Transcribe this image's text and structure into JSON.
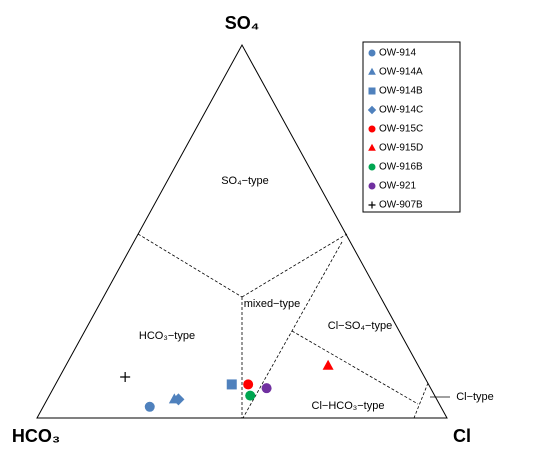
{
  "chart_data": {
    "type": "ternary",
    "axes": [
      "SO₄",
      "Cl",
      "HCO₃"
    ],
    "regions": [
      "SO₄−type",
      "mixed−type",
      "HCO₃−type",
      "Cl−SO₄−type",
      "Cl−HCO₃−type",
      "Cl−type"
    ],
    "legend": "upper right",
    "series": [
      {
        "name": "OW-914",
        "color": "#4f81bd",
        "marker": "circle",
        "values": [
          3,
          26,
          71
        ]
      },
      {
        "name": "OW-914A",
        "color": "#4f81bd",
        "marker": "triangle",
        "values": [
          5,
          31,
          64
        ]
      },
      {
        "name": "OW-914B",
        "color": "#4f81bd",
        "marker": "square",
        "values": [
          9,
          43,
          48
        ]
      },
      {
        "name": "OW-914C",
        "color": "#4f81bd",
        "marker": "diamond",
        "values": [
          5,
          32,
          63
        ]
      },
      {
        "name": "OW-915C",
        "color": "#ff0000",
        "marker": "circle",
        "values": [
          9,
          47,
          44
        ]
      },
      {
        "name": "OW-915D",
        "color": "#ff0000",
        "marker": "triangle",
        "values": [
          14,
          64,
          22
        ]
      },
      {
        "name": "OW-916B",
        "color": "#00a651",
        "marker": "circle",
        "values": [
          6,
          49,
          45
        ]
      },
      {
        "name": "OW-921",
        "color": "#7030a0",
        "marker": "circle",
        "values": [
          8,
          52,
          40
        ]
      },
      {
        "name": "OW-907B",
        "color": "#000000",
        "marker": "plus",
        "values": [
          11,
          16,
          73
        ]
      }
    ]
  }
}
